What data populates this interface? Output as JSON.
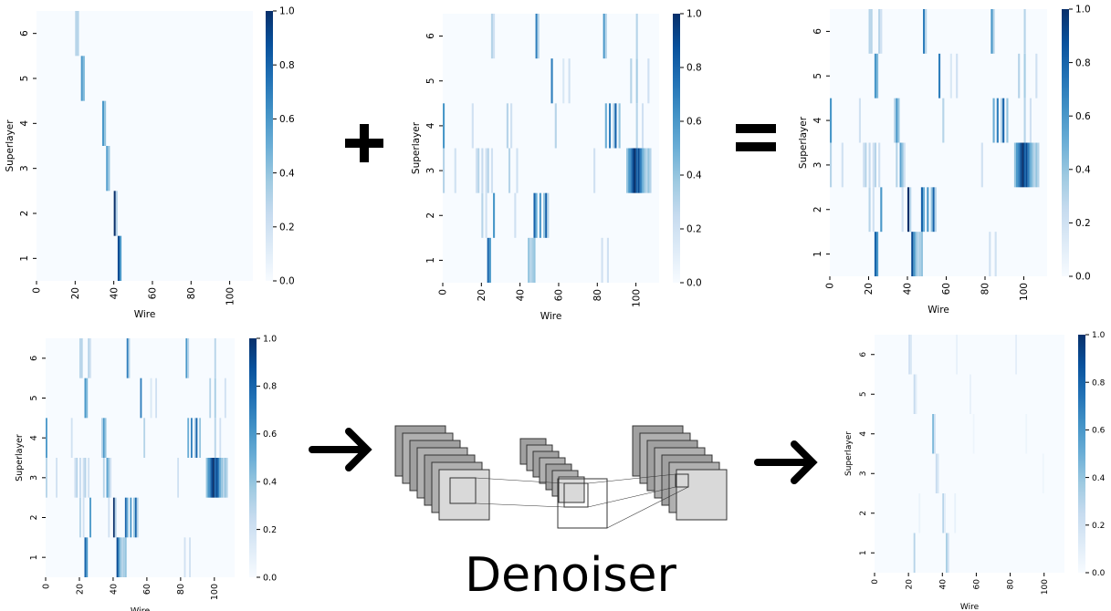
{
  "chart_data": [
    {
      "type": "heatmap",
      "xlabel": "Wire",
      "ylabel": "Superlayer",
      "xlim": [
        0,
        112
      ],
      "xticks": [
        0,
        20,
        40,
        60,
        80,
        100
      ],
      "clim": [
        0,
        1
      ],
      "cticks": [
        {
          "value": 0,
          "label": "0.0"
        },
        0.2,
        0.4,
        0.6,
        0.8,
        {
          "value": 1,
          "label": "1.0"
        }
      ],
      "colormap": [
        "#f7fbff",
        "#deebf7",
        "#c6dbef",
        "#9ecae1",
        "#6baed6",
        "#4292c6",
        "#2171b5",
        "#08519c",
        "#08306b"
      ],
      "rows": [
        {
          "name": "1",
          "wires": [
            42,
            43
          ],
          "values": [
            0.9,
            0.6
          ]
        },
        {
          "name": "2",
          "wires": [
            40,
            41
          ],
          "values": [
            1.0,
            0.3
          ]
        },
        {
          "name": "3",
          "wires": [
            36,
            37
          ],
          "values": [
            0.55,
            0.4
          ]
        },
        {
          "name": "4",
          "wires": [
            34,
            35
          ],
          "values": [
            0.6,
            0.4
          ]
        },
        {
          "name": "5",
          "wires": [
            23,
            24
          ],
          "values": [
            0.6,
            0.45
          ]
        },
        {
          "name": "6",
          "wires": [
            20,
            21
          ],
          "values": [
            0.3,
            0.3
          ]
        }
      ]
    },
    {
      "type": "heatmap",
      "xlabel": "Wire",
      "ylabel": "Superlayer",
      "xlim": [
        0,
        112
      ],
      "xticks": [
        0,
        20,
        40,
        60,
        80,
        100
      ],
      "clim": [
        0,
        1
      ],
      "cticks": [
        {
          "value": 0,
          "label": "0.0"
        },
        0.2,
        0.4,
        0.6,
        0.8,
        {
          "value": 1,
          "label": "1.0"
        }
      ],
      "colormap": [
        "#f7fbff",
        "#deebf7",
        "#c6dbef",
        "#9ecae1",
        "#6baed6",
        "#4292c6",
        "#2171b5",
        "#08519c",
        "#08306b"
      ],
      "rows": [
        {
          "name": "1",
          "wires": [
            23,
            24,
            44,
            45,
            46,
            47,
            82,
            85
          ],
          "values": [
            0.8,
            0.6,
            0.4,
            0.3,
            0.35,
            0.4,
            0.2,
            0.2
          ]
        },
        {
          "name": "2",
          "wires": [
            20,
            22,
            26,
            37,
            47,
            48,
            50,
            52,
            53,
            54
          ],
          "values": [
            0.3,
            0.2,
            0.6,
            0.2,
            0.8,
            0.5,
            0.6,
            0.4,
            0.8,
            0.3
          ]
        },
        {
          "name": "3",
          "wires": [
            0,
            6,
            17,
            18,
            20,
            22,
            23,
            25,
            34,
            38,
            78,
            95,
            96,
            97,
            98,
            99,
            100,
            101,
            102,
            103,
            104,
            105,
            106,
            107
          ],
          "values": [
            0.3,
            0.2,
            0.2,
            0.3,
            0.25,
            0.2,
            0.3,
            0.2,
            0.3,
            0.2,
            0.2,
            0.4,
            0.6,
            0.7,
            0.9,
            1.0,
            0.8,
            0.9,
            0.7,
            0.5,
            0.4,
            0.3,
            0.4,
            0.3
          ]
        },
        {
          "name": "4",
          "wires": [
            0,
            15,
            33,
            35,
            58,
            84,
            86,
            88,
            89,
            91,
            100,
            103
          ],
          "values": [
            0.6,
            0.2,
            0.3,
            0.2,
            0.3,
            0.5,
            0.7,
            0.3,
            0.8,
            0.4,
            0.3,
            0.2
          ]
        },
        {
          "name": "5",
          "wires": [
            56,
            62,
            65,
            97,
            100,
            106
          ],
          "values": [
            0.7,
            0.15,
            0.2,
            0.3,
            0.35,
            0.2
          ]
        },
        {
          "name": "6",
          "wires": [
            25,
            26,
            48,
            49,
            83,
            84,
            100
          ],
          "values": [
            0.3,
            0.2,
            0.7,
            0.3,
            0.6,
            0.3,
            0.3
          ]
        }
      ]
    },
    {
      "type": "heatmap",
      "xlabel": "Wire",
      "ylabel": "Superlayer",
      "xlim": [
        0,
        112
      ],
      "xticks": [
        0,
        20,
        40,
        60,
        80,
        100
      ],
      "clim": [
        0,
        1
      ],
      "cticks": [
        {
          "value": 0,
          "label": "0.0"
        },
        0.2,
        0.4,
        0.6,
        0.8,
        {
          "value": 1,
          "label": "1.0"
        }
      ],
      "colormap": [
        "#f7fbff",
        "#deebf7",
        "#c6dbef",
        "#9ecae1",
        "#6baed6",
        "#4292c6",
        "#2171b5",
        "#08519c",
        "#08306b"
      ],
      "rows": [
        {
          "name": "1",
          "wires": [
            23,
            24,
            42,
            43,
            44,
            45,
            46,
            47,
            82,
            85
          ],
          "values": [
            0.8,
            0.6,
            0.9,
            0.6,
            0.4,
            0.3,
            0.35,
            0.4,
            0.2,
            0.2
          ]
        },
        {
          "name": "2",
          "wires": [
            20,
            22,
            26,
            37,
            40,
            41,
            47,
            48,
            50,
            52,
            53,
            54
          ],
          "values": [
            0.3,
            0.2,
            0.6,
            0.2,
            1.0,
            0.3,
            0.8,
            0.5,
            0.6,
            0.4,
            0.8,
            0.3
          ]
        },
        {
          "name": "3",
          "wires": [
            0,
            6,
            17,
            18,
            20,
            22,
            23,
            25,
            34,
            36,
            37,
            38,
            78,
            95,
            96,
            97,
            98,
            99,
            100,
            101,
            102,
            103,
            104,
            105,
            106,
            107
          ],
          "values": [
            0.3,
            0.2,
            0.2,
            0.3,
            0.25,
            0.2,
            0.3,
            0.2,
            0.3,
            0.55,
            0.4,
            0.2,
            0.2,
            0.4,
            0.6,
            0.7,
            0.9,
            1.0,
            0.8,
            0.9,
            0.7,
            0.5,
            0.4,
            0.3,
            0.4,
            0.3
          ]
        },
        {
          "name": "4",
          "wires": [
            0,
            15,
            33,
            34,
            35,
            58,
            84,
            86,
            88,
            89,
            91,
            100,
            103
          ],
          "values": [
            0.6,
            0.2,
            0.3,
            0.6,
            0.4,
            0.3,
            0.5,
            0.7,
            0.3,
            0.8,
            0.4,
            0.3,
            0.2
          ]
        },
        {
          "name": "5",
          "wires": [
            23,
            24,
            56,
            62,
            65,
            97,
            100,
            106
          ],
          "values": [
            0.6,
            0.45,
            0.7,
            0.15,
            0.2,
            0.3,
            0.35,
            0.2
          ]
        },
        {
          "name": "6",
          "wires": [
            20,
            21,
            25,
            26,
            48,
            49,
            83,
            84,
            100
          ],
          "values": [
            0.3,
            0.3,
            0.3,
            0.2,
            0.7,
            0.3,
            0.6,
            0.3,
            0.3
          ]
        }
      ]
    },
    {
      "type": "heatmap",
      "xlabel": "Wire",
      "ylabel": "Superlayer",
      "xlim": [
        0,
        112
      ],
      "xticks": [
        0,
        20,
        40,
        60,
        80,
        100
      ],
      "clim": [
        0,
        1
      ],
      "cticks": [
        {
          "value": 0,
          "label": "0.0"
        },
        0.2,
        0.4,
        0.6,
        0.8,
        {
          "value": 1,
          "label": "1.0"
        }
      ],
      "colormap": [
        "#f7fbff",
        "#deebf7",
        "#c6dbef",
        "#9ecae1",
        "#6baed6",
        "#4292c6",
        "#2171b5",
        "#08519c",
        "#08306b"
      ],
      "rows": [
        {
          "name": "1",
          "wires": [
            23,
            24,
            42,
            43,
            44,
            45,
            46,
            47,
            82,
            85
          ],
          "values": [
            0.8,
            0.6,
            0.9,
            0.6,
            0.4,
            0.3,
            0.35,
            0.4,
            0.2,
            0.2
          ]
        },
        {
          "name": "2",
          "wires": [
            20,
            22,
            26,
            37,
            40,
            41,
            47,
            48,
            50,
            52,
            53,
            54
          ],
          "values": [
            0.3,
            0.2,
            0.6,
            0.2,
            1.0,
            0.3,
            0.8,
            0.5,
            0.6,
            0.4,
            0.8,
            0.3
          ]
        },
        {
          "name": "3",
          "wires": [
            0,
            6,
            17,
            18,
            20,
            22,
            23,
            25,
            34,
            36,
            37,
            38,
            78,
            95,
            96,
            97,
            98,
            99,
            100,
            101,
            102,
            103,
            104,
            105,
            106,
            107
          ],
          "values": [
            0.3,
            0.2,
            0.2,
            0.3,
            0.25,
            0.2,
            0.3,
            0.2,
            0.3,
            0.55,
            0.4,
            0.2,
            0.2,
            0.4,
            0.6,
            0.7,
            0.9,
            1.0,
            0.8,
            0.9,
            0.7,
            0.5,
            0.4,
            0.3,
            0.4,
            0.3
          ]
        },
        {
          "name": "4",
          "wires": [
            0,
            15,
            33,
            34,
            35,
            58,
            84,
            86,
            88,
            89,
            91,
            100,
            103
          ],
          "values": [
            0.6,
            0.2,
            0.3,
            0.6,
            0.4,
            0.3,
            0.5,
            0.7,
            0.3,
            0.8,
            0.4,
            0.3,
            0.2
          ]
        },
        {
          "name": "5",
          "wires": [
            23,
            24,
            56,
            62,
            65,
            97,
            100,
            106
          ],
          "values": [
            0.6,
            0.45,
            0.7,
            0.15,
            0.2,
            0.3,
            0.35,
            0.2
          ]
        },
        {
          "name": "6",
          "wires": [
            20,
            21,
            25,
            26,
            48,
            49,
            83,
            84,
            100
          ],
          "values": [
            0.3,
            0.3,
            0.3,
            0.2,
            0.7,
            0.3,
            0.6,
            0.3,
            0.3
          ]
        }
      ]
    },
    {
      "type": "heatmap",
      "xlabel": "Wire",
      "ylabel": "Superlayer",
      "xlim": [
        0,
        112
      ],
      "xticks": [
        0,
        20,
        40,
        60,
        80,
        100
      ],
      "clim": [
        0,
        1
      ],
      "cticks": [
        {
          "value": 0,
          "label": "0.0"
        },
        0.2,
        0.4,
        0.6,
        0.8,
        {
          "value": 1,
          "label": "1.0"
        }
      ],
      "colormap": [
        "#f7fbff",
        "#deebf7",
        "#c6dbef",
        "#9ecae1",
        "#6baed6",
        "#4292c6",
        "#2171b5",
        "#08519c",
        "#08306b"
      ],
      "rows": [
        {
          "name": "1",
          "wires": [
            23,
            42,
            43
          ],
          "values": [
            0.3,
            0.35,
            0.2
          ]
        },
        {
          "name": "2",
          "wires": [
            26,
            40,
            41,
            47
          ],
          "values": [
            0.06,
            0.3,
            0.1,
            0.08
          ]
        },
        {
          "name": "3",
          "wires": [
            36,
            37,
            99
          ],
          "values": [
            0.25,
            0.15,
            0.05
          ]
        },
        {
          "name": "4",
          "wires": [
            34,
            35,
            58,
            89
          ],
          "values": [
            0.45,
            0.2,
            0.05,
            0.05
          ]
        },
        {
          "name": "5",
          "wires": [
            23,
            24,
            56
          ],
          "values": [
            0.25,
            0.1,
            0.08
          ]
        },
        {
          "name": "6",
          "wires": [
            20,
            21,
            48,
            83
          ],
          "values": [
            0.2,
            0.15,
            0.08,
            0.1
          ]
        }
      ]
    }
  ],
  "caption": "Denoiser"
}
